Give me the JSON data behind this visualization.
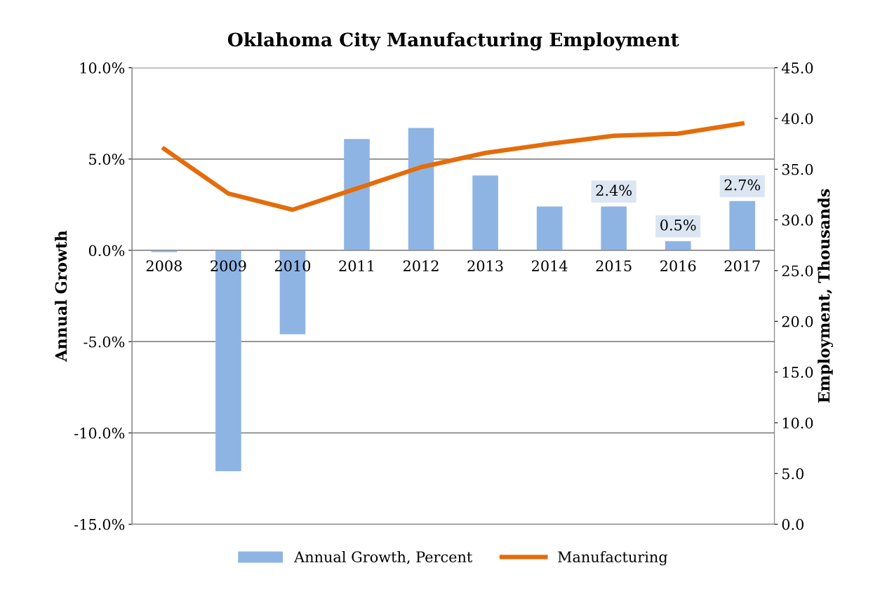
{
  "chart_data": {
    "type": "bar",
    "title": "Oklahoma City Manufacturing Employment",
    "categories": [
      "2008",
      "2009",
      "2010",
      "2011",
      "2012",
      "2013",
      "2014",
      "2015",
      "2016",
      "2017"
    ],
    "series": [
      {
        "name": "Annual Growth, Percent",
        "color": "#8eb4e3",
        "values": [
          -0.1,
          -12.1,
          -4.6,
          6.1,
          6.7,
          4.1,
          2.4,
          2.4,
          0.5,
          2.7
        ],
        "value_labels": [
          null,
          null,
          null,
          null,
          null,
          null,
          null,
          "2.4%",
          "0.5%",
          "2.7%"
        ]
      },
      {
        "name": "Manufacturing",
        "type": "line",
        "axis": "y2",
        "color": "#e46c0a",
        "values": [
          37.0,
          32.6,
          31.0,
          33.1,
          35.2,
          36.6,
          37.5,
          38.3,
          38.5,
          39.5
        ]
      }
    ],
    "ylabel": "Annual Growth",
    "y2label": "Employment, Thousands",
    "ylim": [
      -15,
      10
    ],
    "yticks": [
      {
        "value": -15,
        "label": "-15.0%"
      },
      {
        "value": -10,
        "label": "-10.0%"
      },
      {
        "value": -5,
        "label": "-5.0%"
      },
      {
        "value": 0,
        "label": "0.0%"
      },
      {
        "value": 5,
        "label": "5.0%"
      },
      {
        "value": 10,
        "label": "10.0%"
      }
    ],
    "y2lim": [
      0,
      45
    ],
    "y2ticks": [
      {
        "value": 0,
        "label": "0.0"
      },
      {
        "value": 5,
        "label": "5.0"
      },
      {
        "value": 10,
        "label": "10.0"
      },
      {
        "value": 15,
        "label": "15.0"
      },
      {
        "value": 20,
        "label": "20.0"
      },
      {
        "value": 25,
        "label": "25.0"
      },
      {
        "value": 30,
        "label": "30.0"
      },
      {
        "value": 35,
        "label": "35.0"
      },
      {
        "value": 40,
        "label": "40.0"
      },
      {
        "value": 45,
        "label": "45.0"
      }
    ],
    "grid": "y",
    "legend": "bottom",
    "marker": "none",
    "line_style": "solid"
  }
}
